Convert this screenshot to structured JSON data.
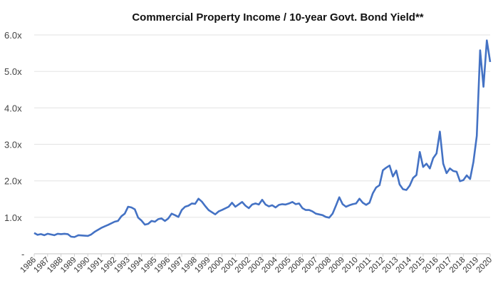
{
  "chart_data": {
    "type": "line",
    "title": "Commercial Property Income / 10-year Govt. Bond Yield**",
    "xlabel": "",
    "ylabel": "",
    "ylim": [
      0,
      6
    ],
    "xlim": [
      1986,
      2020
    ],
    "grid": true,
    "y_ticks": [
      {
        "value": 0,
        "label": "-"
      },
      {
        "value": 1,
        "label": "1.0x"
      },
      {
        "value": 2,
        "label": "2.0x"
      },
      {
        "value": 3,
        "label": "3.0x"
      },
      {
        "value": 4,
        "label": "4.0x"
      },
      {
        "value": 5,
        "label": "5.0x"
      },
      {
        "value": 6,
        "label": "6.0x"
      }
    ],
    "x_ticks": [
      "1986",
      "1987",
      "1988",
      "1989",
      "1990",
      "1991",
      "1992",
      "1993",
      "1994",
      "1995",
      "1996",
      "1997",
      "1998",
      "1999",
      "2000",
      "2001",
      "2002",
      "2003",
      "2004",
      "2005",
      "2006",
      "2007",
      "2008",
      "2009",
      "2010",
      "2011",
      "2012",
      "2013",
      "2014",
      "2015",
      "2016",
      "2017",
      "2018",
      "2019",
      "2020"
    ],
    "series": [
      {
        "name": "Commercial Property Income / 10-year Govt. Bond Yield",
        "color": "#4472C4",
        "x": [
          1986,
          1986.25,
          1986.5,
          1986.75,
          1987,
          1987.5,
          1987.75,
          1988,
          1988.25,
          1988.5,
          1988.75,
          1989,
          1989.3,
          1990,
          1990.25,
          1990.5,
          1991,
          1991.25,
          1991.5,
          1992,
          1992.25,
          1992.5,
          1992.75,
          1993,
          1993.25,
          1993.5,
          1993.75,
          1994,
          1994.25,
          1994.5,
          1994.75,
          1995,
          1995.25,
          1995.5,
          1995.75,
          1996,
          1996.25,
          1996.5,
          1996.75,
          1997,
          1997.25,
          1997.5,
          1997.75,
          1998,
          1998.25,
          1998.5,
          1998.75,
          1999,
          1999.5,
          1999.75,
          2000,
          2000.5,
          2000.75,
          2001,
          2001.5,
          2001.75,
          2002,
          2002.25,
          2002.5,
          2002.75,
          2003,
          2003.25,
          2003.5,
          2003.75,
          2004,
          2004.25,
          2004.5,
          2004.75,
          2005,
          2005.25,
          2005.5,
          2005.75,
          2006,
          2006.25,
          2006.5,
          2006.75,
          2007,
          2007.5,
          2007.75,
          2008,
          2008.25,
          2008.5,
          2008.75,
          2009,
          2009.25,
          2009.5,
          2009.75,
          2010,
          2010.25,
          2010.5,
          2010.75,
          2011,
          2011.25,
          2011.5,
          2011.75,
          2012,
          2012.25,
          2012.5,
          2012.75,
          2013,
          2013.25,
          2013.5,
          2013.75,
          2014,
          2014.25,
          2014.5,
          2014.75,
          2015,
          2015.25,
          2015.5,
          2015.75,
          2016,
          2016.25,
          2016.5,
          2016.75,
          2017,
          2017.25,
          2017.5,
          2017.75,
          2018,
          2018.25,
          2018.5,
          2018.75,
          2019,
          2019.25,
          2019.5,
          2019.75,
          2020
        ],
        "y": [
          0.57,
          0.52,
          0.54,
          0.51,
          0.55,
          0.51,
          0.55,
          0.54,
          0.55,
          0.54,
          0.47,
          0.46,
          0.51,
          0.49,
          0.53,
          0.6,
          0.71,
          0.75,
          0.79,
          0.88,
          0.9,
          1.03,
          1.1,
          1.29,
          1.27,
          1.22,
          0.99,
          0.91,
          0.8,
          0.82,
          0.9,
          0.88,
          0.95,
          0.97,
          0.9,
          0.97,
          1.1,
          1.06,
          1.01,
          1.2,
          1.29,
          1.32,
          1.38,
          1.37,
          1.51,
          1.43,
          1.31,
          1.2,
          1.08,
          1.16,
          1.2,
          1.29,
          1.4,
          1.29,
          1.42,
          1.32,
          1.25,
          1.35,
          1.38,
          1.35,
          1.48,
          1.35,
          1.3,
          1.33,
          1.27,
          1.34,
          1.36,
          1.35,
          1.38,
          1.42,
          1.36,
          1.38,
          1.25,
          1.2,
          1.2,
          1.16,
          1.1,
          1.06,
          1.01,
          0.99,
          1.1,
          1.32,
          1.55,
          1.36,
          1.29,
          1.33,
          1.36,
          1.38,
          1.51,
          1.4,
          1.34,
          1.4,
          1.66,
          1.82,
          1.88,
          2.29,
          2.36,
          2.42,
          2.12,
          2.28,
          1.9,
          1.77,
          1.75,
          1.87,
          2.08,
          2.16,
          2.79,
          2.38,
          2.47,
          2.34,
          2.62,
          2.75,
          3.35,
          2.47,
          2.21,
          2.34,
          2.27,
          2.25,
          1.99,
          2.02,
          2.15,
          2.05,
          2.52,
          3.23,
          5.58,
          4.58,
          5.85,
          5.26
        ]
      }
    ]
  }
}
